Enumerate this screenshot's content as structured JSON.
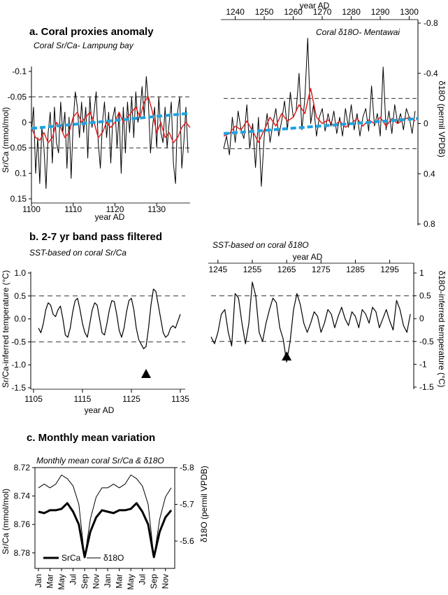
{
  "chart_data": [
    {
      "id": "a1",
      "type": "line",
      "section_title": "a. Coral proxies anomaly",
      "subtitle": "Coral Sr/Ca- Lampung bay",
      "xlabel": "year AD",
      "ylabel": "Sr/Ca (mmol/mol)",
      "xlim": [
        1100,
        1138
      ],
      "ylim": [
        0.15,
        -0.1
      ],
      "y_inverted": true,
      "xticks": [
        "1100",
        "1110",
        "1120",
        "1130"
      ],
      "yticks": [
        "-0.1",
        "-0.05",
        "0",
        "0.05",
        "0.1",
        "0.15"
      ],
      "reference_lines": [
        -0.05,
        0.05
      ],
      "series": [
        {
          "role": "monthly",
          "color": "#000000",
          "x": [
            1100.0,
            1100.5,
            1101.0,
            1101.5,
            1102.0,
            1102.5,
            1103.0,
            1103.5,
            1104.0,
            1104.5,
            1105.0,
            1105.5,
            1106.0,
            1106.5,
            1107.0,
            1107.5,
            1108.0,
            1108.5,
            1109.0,
            1109.5,
            1110.0,
            1110.5,
            1111.0,
            1111.5,
            1112.0,
            1112.5,
            1113.0,
            1113.5,
            1114.0,
            1114.5,
            1115.0,
            1115.5,
            1116.0,
            1116.5,
            1117.0,
            1117.5,
            1118.0,
            1118.5,
            1119.0,
            1119.5,
            1120.0,
            1120.5,
            1121.0,
            1121.5,
            1122.0,
            1122.5,
            1123.0,
            1123.5,
            1124.0,
            1124.5,
            1125.0,
            1125.5,
            1126.0,
            1126.5,
            1127.0,
            1127.5,
            1128.0,
            1128.5,
            1129.0,
            1129.5,
            1130.0,
            1130.5,
            1131.0,
            1131.5,
            1132.0,
            1132.5,
            1133.0,
            1133.5,
            1134.0,
            1134.5,
            1135.0,
            1135.5,
            1136.0,
            1136.5,
            1137.0,
            1137.5
          ],
          "y": [
            0.02,
            -0.03,
            0.1,
            0.03,
            0.12,
            0.01,
            0.05,
            0.13,
            0.02,
            -0.02,
            0.08,
            -0.03,
            0.04,
            0.06,
            -0.04,
            0.02,
            -0.02,
            0.09,
            -0.01,
            0.11,
            0.0,
            -0.06,
            -0.03,
            0.03,
            -0.04,
            0.02,
            -0.03,
            0.07,
            -0.05,
            0.01,
            -0.02,
            -0.06,
            0.04,
            0.09,
            0.0,
            -0.04,
            0.03,
            -0.02,
            0.08,
            -0.01,
            -0.03,
            0.05,
            -0.02,
            0.1,
            -0.03,
            0.06,
            -0.04,
            0.02,
            -0.05,
            0.03,
            -0.06,
            0.0,
            -0.02,
            -0.07,
            -0.01,
            -0.09,
            -0.04,
            0.06,
            0.01,
            -0.03,
            0.05,
            -0.05,
            0.02,
            0.04,
            -0.03,
            0.05,
            0.0,
            -0.04,
            0.08,
            0.12,
            -0.02,
            -0.05,
            0.09,
            0.04,
            -0.03,
            0.06
          ]
        },
        {
          "role": "smoothed",
          "color": "#e02020",
          "x": [
            1100,
            1101,
            1102,
            1103,
            1104,
            1105,
            1106,
            1107,
            1108,
            1109,
            1110,
            1111,
            1112,
            1113,
            1114,
            1115,
            1116,
            1117,
            1118,
            1119,
            1120,
            1121,
            1122,
            1123,
            1124,
            1125,
            1126,
            1127,
            1128,
            1129,
            1130,
            1131,
            1132,
            1133,
            1134,
            1135,
            1136,
            1137,
            1138
          ],
          "y": [
            0.01,
            0.03,
            0.035,
            0.02,
            0.04,
            0.03,
            0.0,
            0.01,
            0.03,
            0.02,
            -0.01,
            -0.02,
            0.0,
            -0.01,
            -0.02,
            0.0,
            0.03,
            0.02,
            0.0,
            0.01,
            0.0,
            -0.02,
            0.0,
            -0.01,
            -0.02,
            -0.03,
            -0.01,
            -0.04,
            -0.05,
            -0.02,
            0.02,
            0.0,
            0.03,
            0.02,
            0.04,
            0.03,
            0.01,
            0.0,
            0.01
          ]
        },
        {
          "role": "trend",
          "color": "#1fa2e0",
          "x": [
            1100,
            1138
          ],
          "y": [
            0.012,
            -0.018
          ]
        }
      ]
    },
    {
      "id": "a2",
      "type": "line",
      "subtitle": "Coral δ18O- Mentawai",
      "xlabel": "year AD",
      "ylabel": "δ18O (permil VPDB)",
      "xlim": [
        1236,
        1303
      ],
      "ylim": [
        0.8,
        -0.8
      ],
      "y_inverted": true,
      "xticks": [
        "1240",
        "1250",
        "1260",
        "1270",
        "1280",
        "1290",
        "1300"
      ],
      "yticks": [
        "-0.8",
        "-0.4",
        "0",
        "0.4",
        "0.8"
      ],
      "reference_lines": [
        -0.2,
        0.2
      ],
      "series": [
        {
          "role": "monthly",
          "color": "#000000",
          "x": [
            1236.0,
            1237.0,
            1238.0,
            1239.0,
            1240.0,
            1241.0,
            1242.0,
            1243.0,
            1244.0,
            1245.0,
            1246.0,
            1247.0,
            1248.0,
            1249.0,
            1250.0,
            1251.0,
            1252.0,
            1253.0,
            1254.0,
            1255.0,
            1256.0,
            1257.0,
            1258.0,
            1259.0,
            1260.0,
            1261.0,
            1262.0,
            1263.0,
            1264.0,
            1265.0,
            1266.0,
            1267.0,
            1268.0,
            1269.0,
            1270.0,
            1271.0,
            1272.0,
            1273.0,
            1274.0,
            1275.0,
            1276.0,
            1277.0,
            1278.0,
            1279.0,
            1280.0,
            1281.0,
            1282.0,
            1283.0,
            1284.0,
            1285.0,
            1286.0,
            1287.0,
            1288.0,
            1289.0,
            1290.0,
            1291.0,
            1292.0,
            1293.0,
            1294.0,
            1295.0,
            1296.0,
            1297.0,
            1298.0,
            1299.0,
            1300.0,
            1301.0,
            1302.0
          ],
          "y": [
            0.2,
            0.1,
            0.25,
            -0.05,
            0.15,
            -0.1,
            0.05,
            0.12,
            -0.15,
            0.2,
            0.0,
            0.35,
            -0.05,
            0.5,
            0.1,
            -0.08,
            0.15,
            0.0,
            -0.12,
            0.1,
            -0.02,
            -0.18,
            0.05,
            -0.25,
            -0.05,
            -0.1,
            -0.4,
            0.05,
            -0.2,
            -0.68,
            0.0,
            -0.15,
            0.1,
            -0.05,
            -0.12,
            0.06,
            -0.08,
            0.02,
            -0.1,
            0.08,
            -0.05,
            0.1,
            -0.12,
            0.03,
            -0.15,
            0.05,
            -0.08,
            0.1,
            -0.05,
            -0.12,
            0.06,
            -0.3,
            0.02,
            -0.08,
            0.1,
            -0.45,
            0.05,
            -0.1,
            0.08,
            -0.15,
            0.0,
            -0.08,
            0.05,
            -0.12,
            -0.05,
            0.08,
            -0.1
          ]
        },
        {
          "role": "smoothed",
          "color": "#e02020",
          "x": [
            1236,
            1238,
            1240,
            1242,
            1244,
            1246,
            1248,
            1250,
            1252,
            1254,
            1256,
            1258,
            1260,
            1262,
            1264,
            1266,
            1268,
            1270,
            1272,
            1274,
            1276,
            1278,
            1280,
            1282,
            1284,
            1286,
            1288,
            1290,
            1292,
            1294,
            1296,
            1298,
            1300,
            1302
          ],
          "y": [
            0.1,
            0.08,
            0.02,
            0.05,
            -0.02,
            0.06,
            0.15,
            0.05,
            -0.05,
            0.02,
            -0.08,
            -0.02,
            -0.05,
            -0.15,
            -0.08,
            -0.28,
            -0.05,
            0.0,
            -0.03,
            0.02,
            -0.02,
            0.03,
            0.0,
            -0.04,
            0.02,
            -0.03,
            0.0,
            -0.05,
            0.02,
            -0.04,
            0.0,
            -0.03,
            -0.05,
            -0.02
          ]
        },
        {
          "role": "trend",
          "color": "#1fa2e0",
          "x": [
            1236,
            1303
          ],
          "y": [
            0.08,
            -0.04
          ]
        }
      ]
    },
    {
      "id": "b1",
      "type": "line",
      "section_title": "b. 2-7 yr band pass filtered",
      "subtitle": "SST-based on coral Sr/Ca",
      "xlabel": "year AD",
      "ylabel": "Sr/Ca-inferred temperature (°C)",
      "xlim": [
        1105,
        1136
      ],
      "ylim": [
        -1.5,
        1.0
      ],
      "xticks": [
        "1105",
        "1115",
        "1125",
        "1135"
      ],
      "yticks": [
        "1.0",
        "0.5",
        "0.0",
        "-0.5",
        "-1.0",
        "-1.5"
      ],
      "reference_lines": [
        0.5,
        -0.5
      ],
      "annotation": {
        "marker": "triangle",
        "x": 1128
      },
      "series": [
        {
          "role": "filtered",
          "color": "#000000",
          "x": [
            1106.0,
            1106.5,
            1107.0,
            1107.5,
            1108.0,
            1108.5,
            1109.0,
            1109.5,
            1110.0,
            1110.5,
            1111.0,
            1111.5,
            1112.0,
            1112.5,
            1113.0,
            1113.5,
            1114.0,
            1114.5,
            1115.0,
            1115.5,
            1116.0,
            1116.5,
            1117.0,
            1117.5,
            1118.0,
            1118.5,
            1119.0,
            1119.5,
            1120.0,
            1120.5,
            1121.0,
            1121.5,
            1122.0,
            1122.5,
            1123.0,
            1123.5,
            1124.0,
            1124.5,
            1125.0,
            1125.5,
            1126.0,
            1126.5,
            1127.0,
            1127.5,
            1128.0,
            1128.5,
            1129.0,
            1129.5,
            1130.0,
            1130.5,
            1131.0,
            1131.5,
            1132.0,
            1132.5,
            1133.0,
            1133.5,
            1134.0,
            1134.5,
            1135.0
          ],
          "y": [
            -0.2,
            -0.3,
            -0.1,
            0.2,
            0.35,
            0.3,
            0.1,
            0.05,
            0.2,
            0.28,
            0.0,
            -0.35,
            -0.4,
            -0.2,
            0.15,
            0.4,
            0.45,
            0.2,
            -0.1,
            -0.3,
            -0.4,
            -0.1,
            0.2,
            0.35,
            0.3,
            0.0,
            -0.3,
            -0.35,
            -0.1,
            0.2,
            0.4,
            0.38,
            0.1,
            -0.25,
            -0.4,
            -0.2,
            0.15,
            0.4,
            0.45,
            0.2,
            -0.2,
            -0.45,
            -0.55,
            -0.65,
            -0.6,
            -0.2,
            0.3,
            0.65,
            0.6,
            0.3,
            0.0,
            -0.3,
            -0.4,
            -0.35,
            -0.2,
            -0.15,
            -0.2,
            -0.05,
            0.1
          ]
        }
      ]
    },
    {
      "id": "b2",
      "type": "line",
      "subtitle": "SST-based on coral δ18O",
      "xlabel": "year AD",
      "ylabel": "δ18O-inferred temperature (°C)",
      "xlim": [
        1243,
        1302
      ],
      "ylim": [
        -1.5,
        1.0
      ],
      "xticks": [
        "1245",
        "1255",
        "1265",
        "1275",
        "1285",
        "1295"
      ],
      "yticks": [
        "1",
        "0.5",
        "0",
        "-0.5",
        "-1",
        "-1.5"
      ],
      "reference_lines": [
        0.5,
        -0.5
      ],
      "annotation": {
        "marker": "triangle",
        "x": 1265
      },
      "series": [
        {
          "role": "filtered",
          "color": "#000000",
          "x": [
            1243.0,
            1244.0,
            1245.0,
            1246.0,
            1247.0,
            1248.0,
            1249.0,
            1250.0,
            1251.0,
            1252.0,
            1253.0,
            1254.0,
            1255.0,
            1256.0,
            1257.0,
            1258.0,
            1259.0,
            1260.0,
            1261.0,
            1262.0,
            1263.0,
            1264.0,
            1265.0,
            1266.0,
            1267.0,
            1268.0,
            1269.0,
            1270.0,
            1271.0,
            1272.0,
            1273.0,
            1274.0,
            1275.0,
            1276.0,
            1277.0,
            1278.0,
            1279.0,
            1280.0,
            1281.0,
            1282.0,
            1283.0,
            1284.0,
            1285.0,
            1286.0,
            1287.0,
            1288.0,
            1289.0,
            1290.0,
            1291.0,
            1292.0,
            1293.0,
            1294.0,
            1295.0,
            1296.0,
            1297.0,
            1298.0,
            1299.0,
            1300.0,
            1301.0
          ],
          "y": [
            -0.4,
            -0.55,
            -0.3,
            0.1,
            0.2,
            -0.3,
            -0.6,
            0.55,
            0.45,
            -0.1,
            -0.55,
            -0.1,
            0.8,
            0.5,
            -0.3,
            -0.5,
            -0.1,
            0.2,
            0.45,
            0.35,
            -0.2,
            -0.45,
            -0.95,
            -0.5,
            0.2,
            0.55,
            0.3,
            -0.1,
            -0.3,
            -0.1,
            0.15,
            0.05,
            -0.3,
            -0.1,
            0.2,
            0.1,
            -0.2,
            0.05,
            0.25,
            0.0,
            -0.15,
            0.15,
            0.05,
            -0.2,
            0.2,
            0.1,
            -0.1,
            0.25,
            0.15,
            -0.2,
            0.0,
            0.2,
            -0.05,
            -0.25,
            0.4,
            0.2,
            -0.15,
            -0.3,
            0.1
          ]
        }
      ]
    },
    {
      "id": "c",
      "type": "line",
      "section_title": "c. Monthly mean variation",
      "subtitle": "Monthly mean coral Sr/Ca & δ18O",
      "ylabel": "Sr/Ca (mmol/mol)",
      "ylabel_right": "δ18O (permil VPDB)",
      "categories": [
        "Jan",
        "Feb",
        "Mar",
        "Apr",
        "May",
        "Jun",
        "Jul",
        "Aug",
        "Sep",
        "Oct",
        "Nov",
        "Dec",
        "Jan",
        "Feb",
        "Mar",
        "Apr",
        "May",
        "Jun",
        "Jul",
        "Aug",
        "Sep",
        "Oct",
        "Nov",
        "Dec"
      ],
      "xtick_labels": [
        "Jan",
        "Mar",
        "May",
        "Jul",
        "Sep",
        "Nov",
        "Jan",
        "Mar",
        "May",
        "Jul",
        "Sep",
        "Nov"
      ],
      "ylim": [
        8.72,
        8.785
      ],
      "y_inverted": true,
      "yticks": [
        "8.72",
        "8.74",
        "8.76",
        "8.78"
      ],
      "ylim_right": [
        -5.8,
        -5.52
      ],
      "yticks_right": [
        "-5.8",
        "-5.7",
        "-5.6"
      ],
      "legend": {
        "placement": "bottom-left",
        "entries": [
          "SrCa",
          "δ18O"
        ]
      },
      "series": [
        {
          "name": "SrCa",
          "axis": "left",
          "color": "#000000",
          "width": "thick",
          "values": [
            8.751,
            8.752,
            8.75,
            8.75,
            8.749,
            8.745,
            8.751,
            8.76,
            8.783,
            8.765,
            8.755,
            8.75,
            8.751,
            8.752,
            8.75,
            8.75,
            8.749,
            8.745,
            8.751,
            8.76,
            8.783,
            8.765,
            8.755,
            8.75
          ]
        },
        {
          "name": "δ18O",
          "axis": "right",
          "color": "#000000",
          "width": "thin",
          "values": [
            -5.745,
            -5.755,
            -5.745,
            -5.755,
            -5.78,
            -5.77,
            -5.75,
            -5.7,
            -5.555,
            -5.66,
            -5.72,
            -5.745,
            -5.745,
            -5.755,
            -5.745,
            -5.755,
            -5.78,
            -5.77,
            -5.75,
            -5.7,
            -5.555,
            -5.66,
            -5.72,
            -5.745
          ]
        }
      ]
    }
  ]
}
